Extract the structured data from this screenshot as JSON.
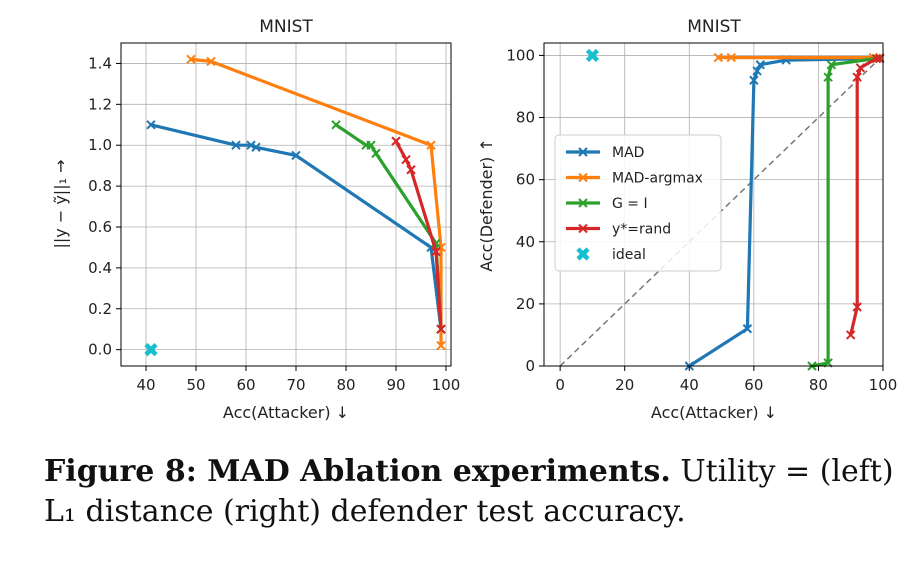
{
  "chart_data": [
    {
      "type": "line",
      "title": "MNIST",
      "xlabel": "Acc(Attacker) ↓",
      "ylabel": "||y − ỹ||₁ →",
      "xlim": [
        35,
        101
      ],
      "ylim": [
        -0.08,
        1.5
      ],
      "xticks": [
        40,
        50,
        60,
        70,
        80,
        90,
        100
      ],
      "yticks": [
        0.0,
        0.2,
        0.4,
        0.6,
        0.8,
        1.0,
        1.2,
        1.4
      ],
      "grid": true,
      "series": [
        {
          "name": "MAD",
          "color": "#1f77b4",
          "x": [
            41,
            58,
            61,
            62,
            70,
            97,
            99
          ],
          "y": [
            1.1,
            1.0,
            1.0,
            0.99,
            0.95,
            0.5,
            0.1
          ]
        },
        {
          "name": "MAD-argmax",
          "color": "#ff7f0e",
          "x": [
            49,
            53,
            97,
            99,
            99
          ],
          "y": [
            1.42,
            1.41,
            1.0,
            0.5,
            0.02
          ]
        },
        {
          "name": "G = I",
          "color": "#2ca02c",
          "x": [
            78,
            84,
            85,
            86,
            98,
            99
          ],
          "y": [
            1.1,
            1.0,
            1.0,
            0.96,
            0.52,
            0.1
          ]
        },
        {
          "name": "y*=rand",
          "color": "#d62728",
          "x": [
            90,
            92,
            93,
            98,
            99
          ],
          "y": [
            1.02,
            0.93,
            0.88,
            0.48,
            0.1
          ]
        }
      ],
      "ideal": {
        "name": "ideal",
        "color": "#17becf",
        "x": 41,
        "y": 0.0
      }
    },
    {
      "type": "line",
      "title": "MNIST",
      "xlabel": "Acc(Attacker) ↓",
      "ylabel": "Acc(Defender) ↑",
      "xlim": [
        -5,
        100
      ],
      "ylim": [
        0,
        104
      ],
      "xticks": [
        0,
        20,
        40,
        60,
        80,
        100
      ],
      "yticks": [
        0,
        20,
        40,
        60,
        80,
        100
      ],
      "grid": true,
      "legend_position": "center-left",
      "series": [
        {
          "name": "MAD",
          "color": "#1f77b4",
          "x": [
            40,
            58,
            60,
            61,
            62,
            70,
            99
          ],
          "y": [
            0,
            12,
            92,
            95,
            97,
            98.5,
            99
          ]
        },
        {
          "name": "MAD-argmax",
          "color": "#ff7f0e",
          "x": [
            49,
            53,
            97,
            99
          ],
          "y": [
            99.3,
            99.3,
            99.3,
            99.3
          ]
        },
        {
          "name": "G = I",
          "color": "#2ca02c",
          "x": [
            78,
            83,
            83,
            84,
            98,
            99
          ],
          "y": [
            0,
            1,
            93,
            97,
            99,
            99
          ]
        },
        {
          "name": "y*=rand",
          "color": "#d62728",
          "x": [
            90,
            92,
            92,
            93,
            98,
            99
          ],
          "y": [
            10,
            19,
            93,
            96,
            99,
            99
          ]
        }
      ],
      "diagonal": {
        "from": [
          0,
          0
        ],
        "to": [
          100,
          100
        ],
        "color": "#777777"
      },
      "ideal": {
        "name": "ideal",
        "color": "#17becf",
        "x": 10,
        "y": 100
      }
    }
  ],
  "legend": {
    "entries": [
      {
        "label": "MAD",
        "color": "#1f77b4"
      },
      {
        "label": "MAD-argmax",
        "color": "#ff7f0e"
      },
      {
        "label": "G = I",
        "color": "#2ca02c"
      },
      {
        "label": "y*=rand",
        "color": "#d62728"
      },
      {
        "label": "ideal",
        "color": "#17becf"
      }
    ]
  },
  "caption": {
    "label": "Figure 8: MAD Ablation experiments.",
    "text": " Utility = (left) L₁ distance (right) defender test accuracy."
  }
}
